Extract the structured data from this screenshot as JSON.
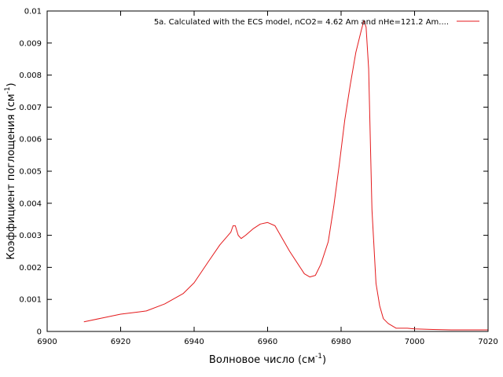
{
  "chart_data": {
    "type": "line",
    "title": "",
    "xlabel_main": "Волновое число (см",
    "xlabel_sup": "-1",
    "xlabel_end": ")",
    "ylabel_main": "Коэффициент поглощения (см",
    "ylabel_sup": "-1",
    "ylabel_end": ")",
    "xlim": [
      6900,
      7020
    ],
    "ylim": [
      0,
      0.01
    ],
    "x_ticks": [
      "6900",
      "6920",
      "6940",
      "6960",
      "6980",
      "7000",
      "7020"
    ],
    "y_ticks": [
      "0",
      "0.001",
      "0.002",
      "0.003",
      "0.004",
      "0.005",
      "0.006",
      "0.007",
      "0.008",
      "0.009",
      "0.01"
    ],
    "grid": false,
    "legend_position": "top-right",
    "series": [
      {
        "name": "5a. Calculated with the ECS model, nCO2= 4.62 Am and nHe=121.2 Am....",
        "color": "#e41a1c",
        "x": [
          6910,
          6915,
          6920,
          6925,
          6927,
          6932,
          6937,
          6940,
          6944,
          6947,
          6950,
          6950.6,
          6951.2,
          6952,
          6952.8,
          6954,
          6956,
          6958,
          6960,
          6962,
          6966,
          6970,
          6971.5,
          6973,
          6974.5,
          6976.5,
          6978,
          6979.5,
          6981,
          6982.5,
          6984,
          6985.5,
          6986.2,
          6986.8,
          6987.5,
          6988.4,
          6989.5,
          6990.5,
          6991.5,
          6992.8,
          6995,
          6998,
          7000,
          7005,
          7010,
          7020
        ],
        "y": [
          0.0003,
          0.00042,
          0.00054,
          0.00061,
          0.00064,
          0.00086,
          0.00118,
          0.00152,
          0.0022,
          0.0027,
          0.0031,
          0.0033,
          0.0033,
          0.003,
          0.0029,
          0.003,
          0.0032,
          0.00335,
          0.0034,
          0.0033,
          0.0025,
          0.0018,
          0.0017,
          0.00175,
          0.0021,
          0.0028,
          0.0039,
          0.0052,
          0.0066,
          0.0077,
          0.0087,
          0.0094,
          0.0097,
          0.0095,
          0.0082,
          0.0038,
          0.0015,
          0.0008,
          0.0004,
          0.00025,
          0.0001,
          0.0001,
          8e-05,
          6e-05,
          5e-05,
          5e-05
        ]
      }
    ]
  }
}
